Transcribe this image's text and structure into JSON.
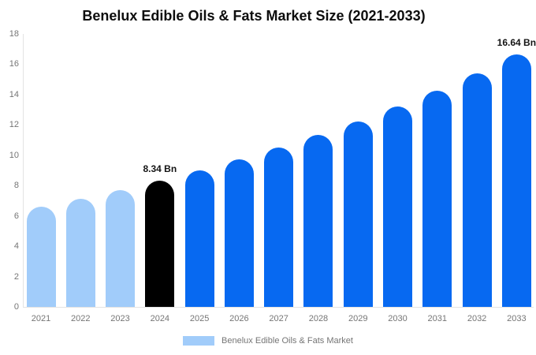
{
  "title": "Benelux Edible Oils & Fats Market Size (2021-2033)",
  "legend": {
    "label": "Benelux Edible Oils & Fats Market"
  },
  "colors": {
    "historical_bar": "#a1ccfa",
    "base_year_bar": "#000000",
    "forecast_bar": "#0769f1",
    "axis_line": "#e3e3e3",
    "tick_text": "#757575",
    "annotation_text": "#141414"
  },
  "chart_data": {
    "type": "bar",
    "title": "Benelux Edible Oils & Fats Market Size (2021-2033)",
    "categories": [
      "2021",
      "2022",
      "2023",
      "2024",
      "2025",
      "2026",
      "2027",
      "2028",
      "2029",
      "2030",
      "2031",
      "2032",
      "2033"
    ],
    "values": [
      6.62,
      7.15,
      7.72,
      8.34,
      9.0,
      9.72,
      10.5,
      11.33,
      12.24,
      13.21,
      14.27,
      15.41,
      16.64
    ],
    "bar_roles": [
      "historical",
      "historical",
      "historical",
      "base_year",
      "forecast",
      "forecast",
      "forecast",
      "forecast",
      "forecast",
      "forecast",
      "forecast",
      "forecast",
      "forecast"
    ],
    "annotations": [
      {
        "category": "2024",
        "text": "8.34 Bn"
      },
      {
        "category": "2033",
        "text": "16.64 Bn"
      }
    ],
    "xlabel": "",
    "ylabel": "",
    "ylim": [
      0,
      18
    ],
    "yticks": [
      0,
      2,
      4,
      6,
      8,
      10,
      12,
      14,
      16,
      18
    ],
    "grid": false,
    "legend_position": "bottom",
    "legend_entries": [
      "Benelux Edible Oils & Fats Market"
    ],
    "unit": "Bn"
  }
}
